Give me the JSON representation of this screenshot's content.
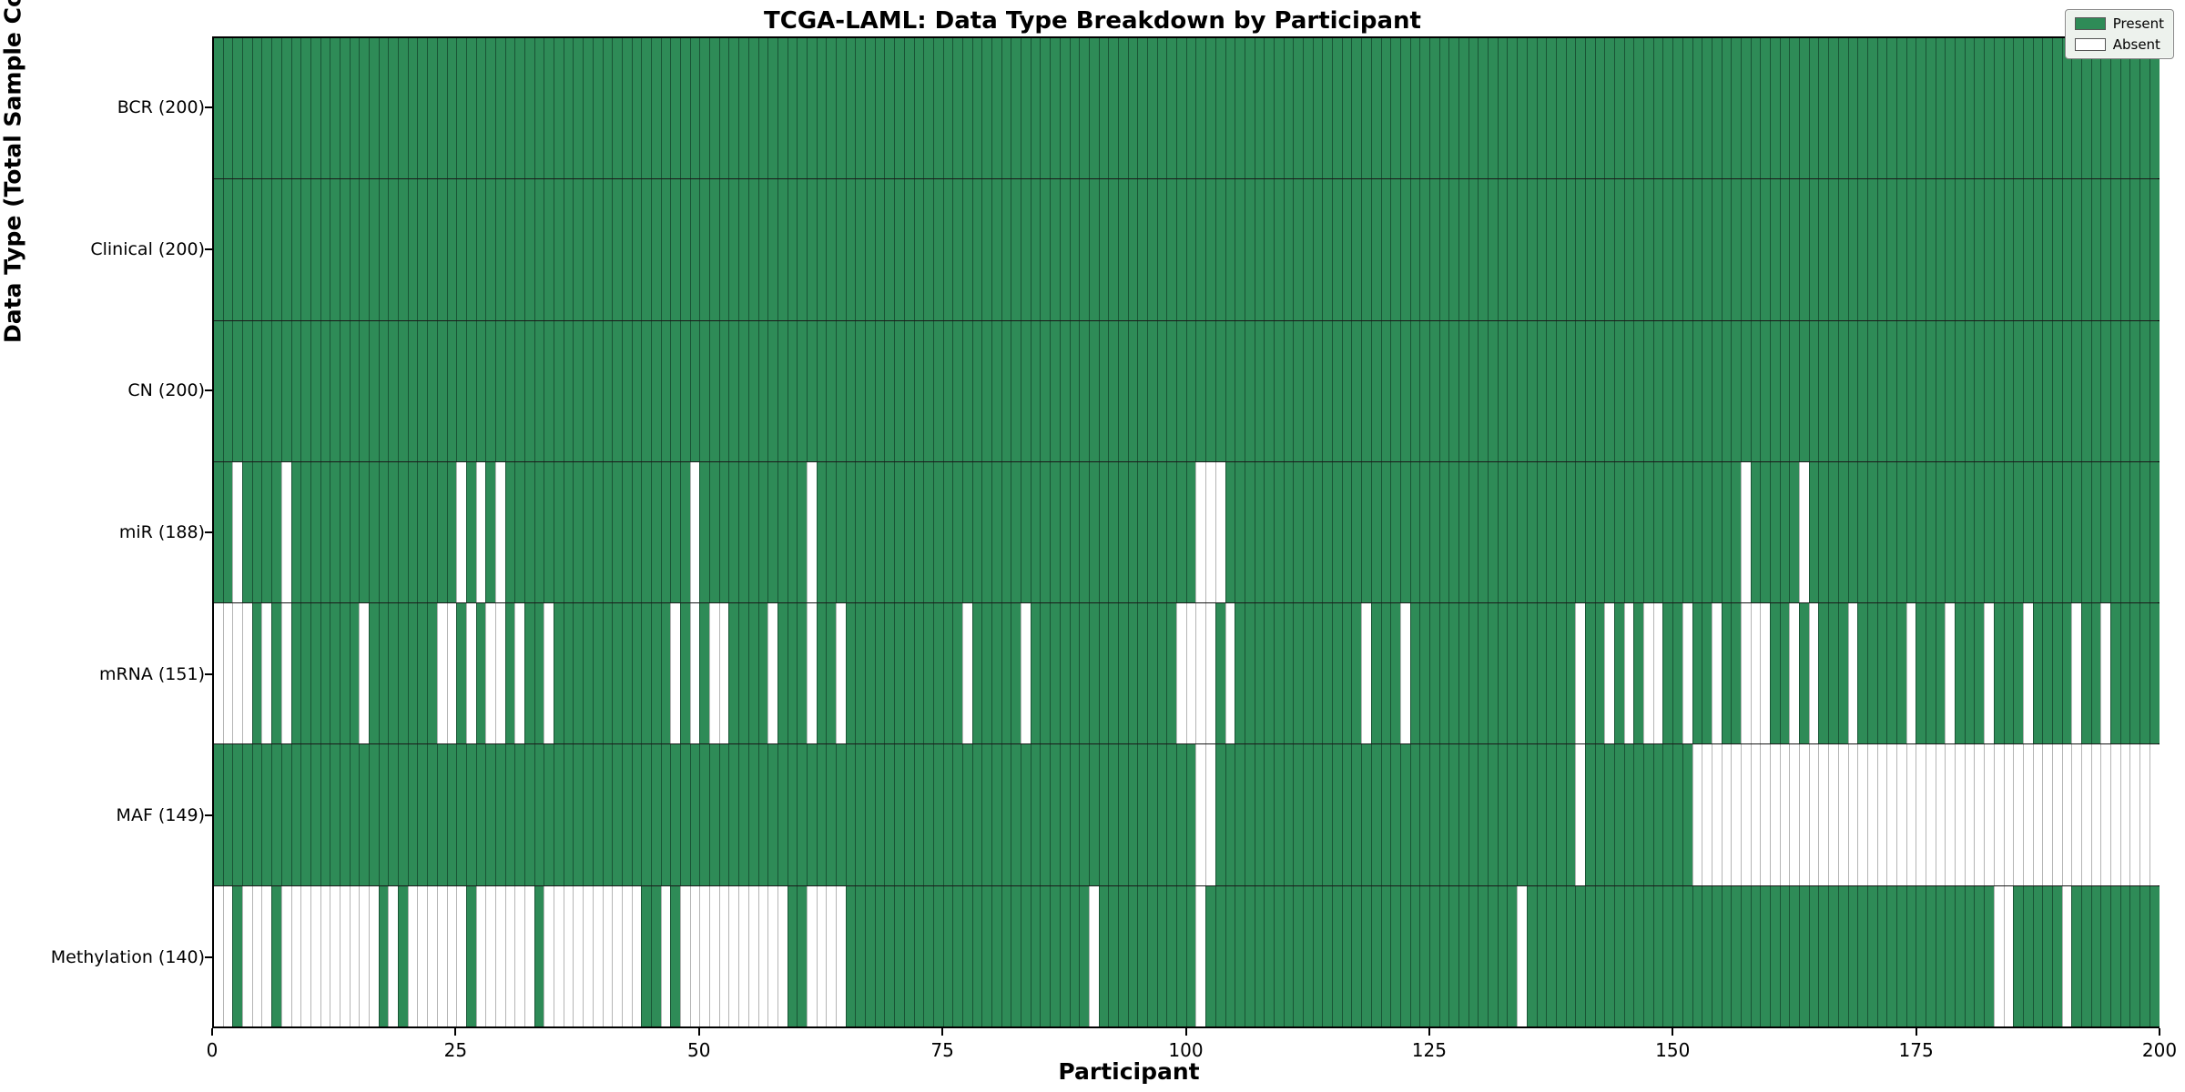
{
  "chart_data": {
    "type": "heatmap",
    "title": "TCGA-LAML: Data Type Breakdown by Participant",
    "xlabel": "Participant",
    "ylabel": "Data Type (Total Sample Count)",
    "n_participants": 200,
    "x_ticks": [
      0,
      25,
      50,
      75,
      100,
      125,
      150,
      175,
      200
    ],
    "xlim": [
      0,
      200
    ],
    "grid": false,
    "legend_position": "upper right",
    "colors": {
      "present": "#2e8b57",
      "absent": "#ffffff",
      "cell_edge_present": "rgba(10,40,25,0.55)",
      "cell_edge_absent": "#b5b5b5",
      "row_separator": "#1a1a1a",
      "legend_bg": "#edf2ed"
    },
    "legend": [
      {
        "label": "Present",
        "color_key": "present"
      },
      {
        "label": "Absent",
        "color_key": "absent"
      }
    ],
    "rows": [
      {
        "name": "BCR",
        "label": "BCR (200)",
        "present_count": 200,
        "absent": []
      },
      {
        "name": "Clinical",
        "label": "Clinical (200)",
        "present_count": 200,
        "absent": []
      },
      {
        "name": "CN",
        "label": "CN (200)",
        "present_count": 200,
        "absent": []
      },
      {
        "name": "miR",
        "label": "miR (188)",
        "present_count": 188,
        "absent": [
          2,
          7,
          25,
          27,
          29,
          49,
          61,
          101,
          102,
          103,
          157,
          163
        ]
      },
      {
        "name": "mRNA",
        "label": "mRNA (151)",
        "present_count": 151,
        "absent": [
          0,
          1,
          2,
          3,
          5,
          7,
          15,
          23,
          24,
          26,
          28,
          29,
          31,
          34,
          47,
          49,
          51,
          52,
          57,
          61,
          64,
          77,
          83,
          99,
          100,
          101,
          102,
          104,
          118,
          122,
          140,
          143,
          145,
          147,
          148,
          151,
          154,
          157,
          158,
          159,
          162,
          164,
          168,
          174,
          178,
          182,
          186,
          191,
          194
        ]
      },
      {
        "name": "MAF",
        "label": "MAF (149)",
        "present_count": 149,
        "absent": [
          101,
          102,
          140,
          152,
          153,
          154,
          155,
          156,
          157,
          158,
          159,
          160,
          161,
          162,
          163,
          164,
          165,
          166,
          167,
          168,
          169,
          170,
          171,
          172,
          173,
          174,
          175,
          176,
          177,
          178,
          179,
          180,
          181,
          182,
          183,
          184,
          185,
          186,
          187,
          188,
          189,
          190,
          191,
          192,
          193,
          194,
          195,
          196,
          197,
          198,
          199
        ]
      },
      {
        "name": "Methylation",
        "label": "Methylation (140)",
        "present_count": 140,
        "absent": [
          0,
          1,
          3,
          4,
          5,
          7,
          8,
          9,
          10,
          11,
          12,
          13,
          14,
          15,
          16,
          18,
          20,
          21,
          22,
          23,
          24,
          25,
          27,
          28,
          29,
          30,
          31,
          32,
          34,
          35,
          36,
          37,
          38,
          39,
          40,
          41,
          42,
          43,
          46,
          48,
          49,
          50,
          51,
          52,
          53,
          54,
          55,
          56,
          57,
          58,
          61,
          62,
          63,
          64,
          90,
          101,
          134,
          183,
          184,
          190
        ]
      }
    ]
  }
}
